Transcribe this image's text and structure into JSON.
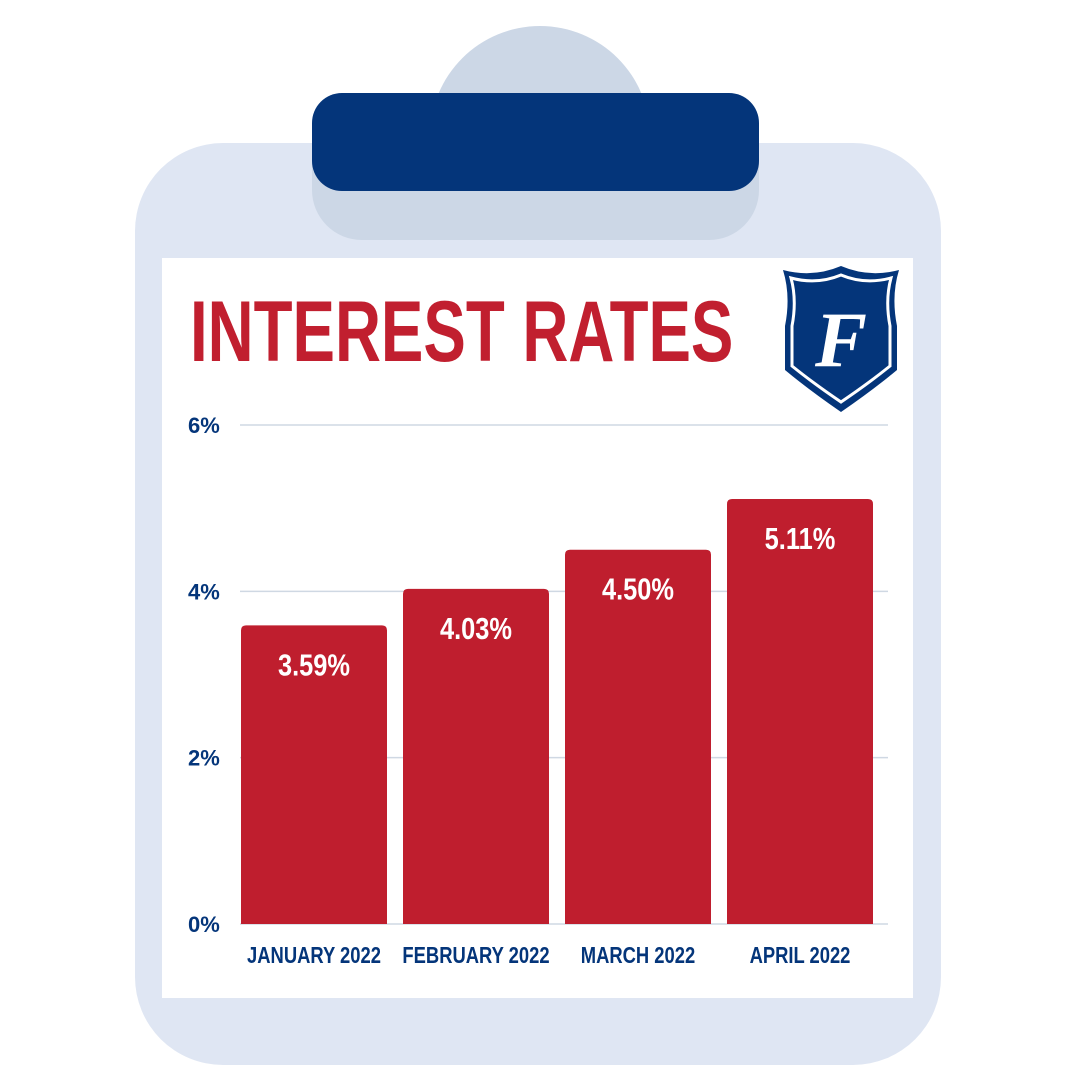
{
  "title": "INTEREST RATES",
  "colors": {
    "bar": "#bf1e2e",
    "accent_navy": "#04357a",
    "board": "#dfe6f3",
    "gridline": "#cfd8e3"
  },
  "logo": {
    "letter": "F",
    "icon": "shield-logo-icon"
  },
  "chart_data": {
    "type": "bar",
    "title": "INTEREST RATES",
    "categories": [
      "JANUARY 2022",
      "FEBRUARY 2022",
      "MARCH 2022",
      "APRIL 2022"
    ],
    "values": [
      3.59,
      4.03,
      4.5,
      5.11
    ],
    "data_labels": [
      "3.59%",
      "4.03%",
      "4.50%",
      "5.11%"
    ],
    "yticks": [
      0,
      2,
      4,
      6
    ],
    "ytick_labels": [
      "0%",
      "2%",
      "4%",
      "6%"
    ],
    "ylim": [
      0,
      6
    ],
    "xlabel": "",
    "ylabel": "",
    "grid": true,
    "legend": false
  }
}
